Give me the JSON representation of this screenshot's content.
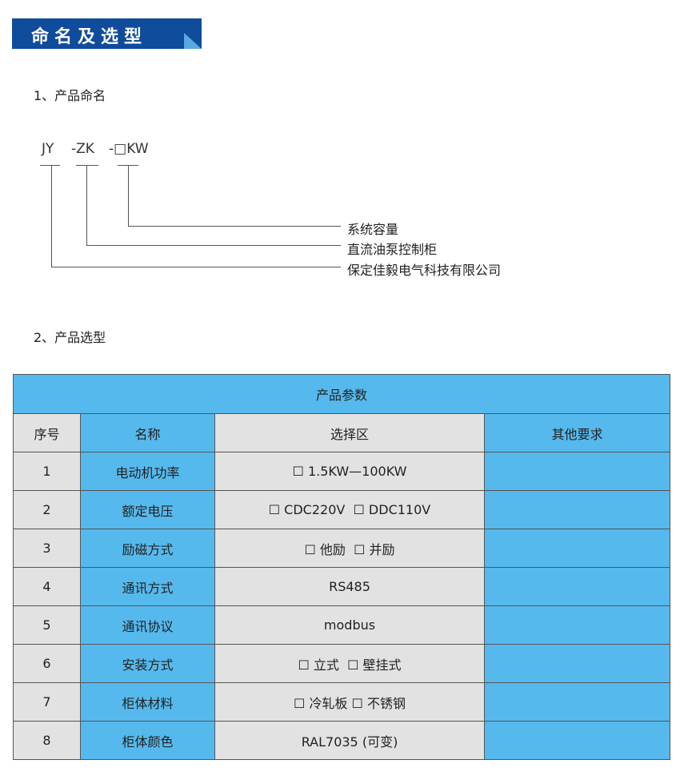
{
  "banner": {
    "title": "命名及选型"
  },
  "naming": {
    "heading": "1、产品命名",
    "code": [
      "JY",
      "-ZK",
      "-□KW"
    ],
    "labels": [
      "系统容量",
      "直流油泵控制柜",
      "保定佳毅电气科技有限公司"
    ]
  },
  "selection": {
    "heading": "2、产品选型",
    "table": {
      "title": "产品参数",
      "headers": [
        "序号",
        "名称",
        "选择区",
        "其他要求"
      ],
      "rows": [
        {
          "no": "1",
          "name": "电动机功率",
          "choice": "☐ 1.5KW—100KW",
          "other": ""
        },
        {
          "no": "2",
          "name": "额定电压",
          "choice": "☐ CDC220V  ☐ DDC110V",
          "other": ""
        },
        {
          "no": "3",
          "name": "励磁方式",
          "choice": "☐ 他励  ☐ 并励",
          "other": ""
        },
        {
          "no": "4",
          "name": "通讯方式",
          "choice": "RS485",
          "other": ""
        },
        {
          "no": "5",
          "name": "通讯协议",
          "choice": "modbus",
          "other": ""
        },
        {
          "no": "6",
          "name": "安装方式",
          "choice": "☐ 立式  ☐ 壁挂式",
          "other": ""
        },
        {
          "no": "7",
          "name": "柜体材料",
          "choice": "☐ 冷轧板 ☐ 不锈钢",
          "other": ""
        },
        {
          "no": "8",
          "name": "柜体颜色",
          "choice": "RAL7035 (可变)",
          "other": ""
        }
      ]
    }
  },
  "colors": {
    "banner": "#0f4c9c",
    "cell_blue": "#56b9ed",
    "cell_gray": "#e2e2e2"
  }
}
